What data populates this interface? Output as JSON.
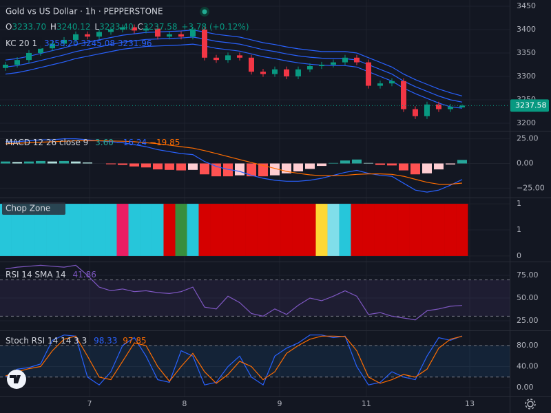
{
  "chart_data": [
    {
      "type": "candlestick",
      "title": "Gold vs US Dollar · 1h · PEPPERSTONE",
      "ohlc_legend": [
        "O",
        "3233.70",
        "H",
        "3240.12",
        "L",
        "3233.40",
        "C",
        "3237.58",
        "+3.78 (+0.12%)"
      ],
      "indicator_label": "KC 20 1",
      "indicator_values": [
        "3258.20",
        "3245.08",
        "3231.96"
      ],
      "xlim": [
        -0.47,
        43.06
      ],
      "ylim": [
        3183.8,
        3463.2
      ],
      "yticks": [
        3200,
        3250,
        3300,
        3350,
        3400,
        3450
      ],
      "up_color": "#089981",
      "down_color": "#f23645",
      "open": [
        3318,
        3325,
        3335,
        3350,
        3360,
        3370,
        3378,
        3390,
        3385,
        3395,
        3400,
        3405,
        3398,
        3402,
        3385,
        3390,
        3385,
        3400,
        3340,
        3335,
        3345,
        3340,
        3310,
        3305,
        3315,
        3300,
        3315,
        3322,
        3325,
        3330,
        3340,
        3330,
        3280,
        3285,
        3290,
        3230,
        3215,
        3240,
        3230,
        3233.7
      ],
      "high": [
        3331,
        3341,
        3356,
        3366,
        3376,
        3384,
        3396,
        3396,
        3401,
        3406,
        3411,
        3411,
        3408,
        3408,
        3396,
        3396,
        3406,
        3406,
        3346,
        3351,
        3351,
        3346,
        3316,
        3321,
        3321,
        3321,
        3328,
        3331,
        3336,
        3346,
        3346,
        3336,
        3291,
        3296,
        3296,
        3236,
        3246,
        3246,
        3241,
        3240.12
      ],
      "low": [
        3312,
        3319,
        3329,
        3344,
        3354,
        3364,
        3372,
        3379,
        3379,
        3389,
        3394,
        3392,
        3392,
        3379,
        3379,
        3379,
        3379,
        3334,
        3329,
        3329,
        3334,
        3304,
        3299,
        3299,
        3294,
        3294,
        3309,
        3316,
        3319,
        3324,
        3324,
        3274,
        3274,
        3279,
        3224,
        3209,
        3209,
        3224,
        3224,
        3233.4
      ],
      "close": [
        3325,
        3335,
        3350,
        3360,
        3370,
        3378,
        3390,
        3385,
        3395,
        3400,
        3405,
        3398,
        3402,
        3385,
        3390,
        3385,
        3400,
        3340,
        3335,
        3345,
        3340,
        3310,
        3305,
        3315,
        3300,
        3315,
        3322,
        3325,
        3330,
        3340,
        3330,
        3280,
        3285,
        3290,
        3230,
        3215,
        3240,
        3230,
        3235,
        3237.58
      ],
      "series": [
        {
          "color": "#2962ff",
          "values": [
            3335,
            3338,
            3343,
            3349,
            3355,
            3361,
            3368,
            3373,
            3378,
            3383,
            3388,
            3391,
            3394,
            3395,
            3396,
            3397,
            3399,
            3395,
            3390,
            3387,
            3384,
            3378,
            3372,
            3368,
            3363,
            3359,
            3356,
            3353,
            3353,
            3353,
            3350,
            3340,
            3330,
            3320,
            3305,
            3293,
            3283,
            3273,
            3265,
            3258.2
          ]
        },
        {
          "color": "#2962ff",
          "values": [
            3320,
            3323,
            3328,
            3334,
            3340,
            3346,
            3353,
            3358,
            3363,
            3368,
            3373,
            3376,
            3379,
            3380,
            3381,
            3382,
            3384,
            3380,
            3375,
            3372,
            3369,
            3363,
            3357,
            3353,
            3348,
            3344,
            3341,
            3339,
            3338,
            3338,
            3335,
            3325,
            3315,
            3305,
            3290,
            3278,
            3268,
            3258,
            3250,
            3245.08
          ]
        },
        {
          "color": "#2962ff",
          "values": [
            3305,
            3308,
            3313,
            3319,
            3325,
            3331,
            3338,
            3343,
            3348,
            3353,
            3358,
            3361,
            3364,
            3365,
            3366,
            3367,
            3369,
            3365,
            3360,
            3357,
            3354,
            3348,
            3342,
            3338,
            3333,
            3329,
            3326,
            3324,
            3323,
            3323,
            3320,
            3310,
            3300,
            3290,
            3275,
            3263,
            3253,
            3243,
            3235,
            3231.96
          ]
        }
      ]
    },
    {
      "type": "macd",
      "title": "MACD 12 26 close 9",
      "legend_values": [
        "3.60",
        "−16.24",
        "−19.85"
      ],
      "xlim": [
        -0.47,
        43.06
      ],
      "ylim": [
        -33.8,
        31.7
      ],
      "yticks": [
        {
          "value": 25,
          "label": "25.00"
        },
        {
          "value": 0,
          "label": "0.00"
        },
        {
          "value": -25,
          "label": "−25.00"
        }
      ],
      "histogram": [
        2,
        1.5,
        2,
        2.5,
        2,
        2.5,
        2,
        1,
        0,
        -0.8,
        -1.5,
        -3,
        -4,
        -6,
        -6.5,
        -7,
        -6.5,
        -11,
        -13,
        -13,
        -12,
        -13,
        -13,
        -12,
        -10,
        -8,
        -5.5,
        -2.5,
        0.5,
        3,
        4,
        0.5,
        -1.5,
        -2,
        -7,
        -11,
        -10,
        -6,
        -1,
        3.6
      ],
      "histogram_colors": [
        "#26a69a",
        "#b2dfdb",
        "#ff5252",
        "#ffcdd2"
      ],
      "series": [
        {
          "color": "#2962ff",
          "values": [
            22,
            22,
            23,
            24,
            24,
            25,
            25,
            24,
            23,
            22,
            21,
            19,
            17,
            14,
            12,
            10,
            9,
            2,
            -3,
            -6,
            -8,
            -12,
            -15,
            -17,
            -18,
            -18,
            -17,
            -15,
            -12,
            -9,
            -7,
            -10,
            -12,
            -13,
            -20,
            -27,
            -29,
            -27,
            -22,
            -16.24
          ]
        },
        {
          "color": "#ff6d00",
          "values": [
            20,
            20.5,
            21,
            21.5,
            22,
            22.5,
            23,
            23,
            23,
            22.8,
            22.5,
            22,
            21,
            20,
            18.5,
            17,
            15.5,
            13,
            10,
            7,
            4,
            1,
            -2,
            -5,
            -8,
            -10,
            -11.5,
            -12.5,
            -12.5,
            -12,
            -11,
            -10.5,
            -10.5,
            -11,
            -13,
            -16,
            -19,
            -21,
            -21,
            -19.85
          ]
        }
      ]
    },
    {
      "type": "chop",
      "title": "Chop Zone",
      "xlim": [
        -0.47,
        43.06
      ],
      "ylim": [
        -0.08,
        1.08
      ],
      "yticks": [
        1,
        {
          "value": 0.5,
          "label": "1"
        },
        0
      ],
      "values": [
        1,
        1,
        1,
        1,
        1,
        1,
        1,
        1,
        1,
        1,
        1,
        1,
        1,
        1,
        1,
        1,
        1,
        1,
        1,
        1,
        1,
        1,
        1,
        1,
        1,
        1,
        1,
        1,
        1,
        1,
        1,
        1,
        1,
        1,
        1,
        1,
        1,
        1,
        1,
        1
      ],
      "colors": [
        "#26c6da",
        "#26c6da",
        "#26c6da",
        "#26c6da",
        "#26c6da",
        "#26c6da",
        "#26c6da",
        "#26c6da",
        "#26c6da",
        "#26c6da",
        "#e91e63",
        "#26c6da",
        "#26c6da",
        "#26c6da",
        "#d50000",
        "#388e3c",
        "#26c6da",
        "#d50000",
        "#d50000",
        "#d50000",
        "#d50000",
        "#d50000",
        "#d50000",
        "#d50000",
        "#d50000",
        "#d50000",
        "#d50000",
        "#fdd835",
        "#80deea",
        "#26c6da",
        "#d50000",
        "#d50000",
        "#d50000",
        "#d50000",
        "#d50000",
        "#d50000",
        "#d50000",
        "#d50000",
        "#d50000",
        "#d50000"
      ]
    },
    {
      "type": "line",
      "title": "RSI 14 SMA 14",
      "legend_values": [
        "41.86"
      ],
      "xlim": [
        -0.47,
        43.06
      ],
      "ylim": [
        14.4,
        88.6
      ],
      "yticks": [
        {
          "value": 75,
          "label": "75.00"
        },
        {
          "value": 50,
          "label": "50.00"
        },
        {
          "value": 25,
          "label": "25.00"
        }
      ],
      "band": [
        30,
        70
      ],
      "band_color": "#7e57c2",
      "series": [
        {
          "color": "#7e57c2",
          "values": [
            82,
            84,
            85,
            86,
            85,
            84,
            86,
            75,
            62,
            58,
            60,
            57,
            58,
            56,
            55,
            57,
            62,
            40,
            38,
            52,
            45,
            33,
            30,
            38,
            32,
            42,
            50,
            47,
            52,
            58,
            52,
            32,
            34,
            30,
            28,
            26,
            36,
            38,
            41,
            41.86
          ]
        }
      ]
    },
    {
      "type": "line",
      "title": "Stoch RSI 14 14 3 3",
      "legend_values": [
        "98.33",
        "97.85"
      ],
      "xlim": [
        -0.47,
        43.06
      ],
      "ylim": [
        -17.0,
        106.2
      ],
      "yticks": [
        {
          "value": 80,
          "label": "80.00"
        },
        {
          "value": 40,
          "label": "40.00"
        },
        {
          "value": 0,
          "label": "0.00"
        }
      ],
      "band": [
        20,
        80
      ],
      "band_color": "#2196f3",
      "xticks": [
        {
          "value": 7.18,
          "label": "7"
        },
        {
          "value": 15.29,
          "label": "8"
        },
        {
          "value": 23.41,
          "label": "9"
        },
        {
          "value": 30.82,
          "label": "11"
        },
        {
          "value": 39.65,
          "label": "13"
        }
      ],
      "series": [
        {
          "color": "#2962ff",
          "values": [
            20,
            35,
            38,
            45,
            90,
            100,
            98,
            20,
            5,
            30,
            80,
            95,
            60,
            15,
            10,
            70,
            60,
            5,
            10,
            40,
            60,
            20,
            5,
            60,
            75,
            85,
            100,
            100,
            95,
            98,
            40,
            5,
            10,
            30,
            20,
            15,
            60,
            95,
            90,
            98.33
          ]
        },
        {
          "color": "#ff6d00",
          "values": [
            22,
            30,
            36,
            40,
            70,
            92,
            98,
            60,
            20,
            15,
            50,
            85,
            80,
            40,
            12,
            40,
            65,
            30,
            8,
            25,
            50,
            40,
            15,
            30,
            65,
            80,
            92,
            98,
            98,
            97,
            70,
            20,
            8,
            15,
            25,
            20,
            35,
            75,
            92,
            97.85
          ]
        }
      ]
    }
  ]
}
